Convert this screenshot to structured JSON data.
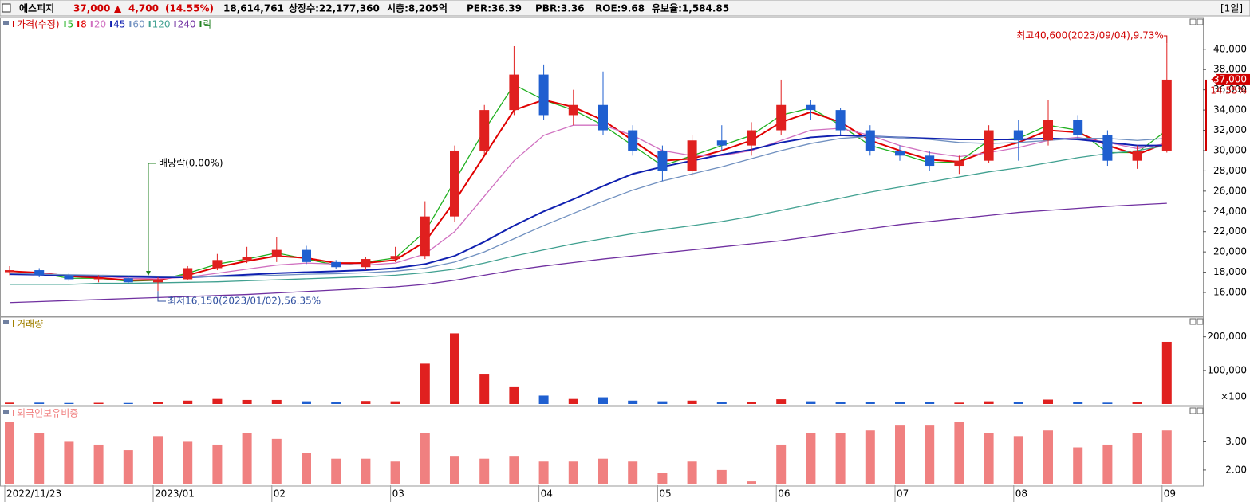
{
  "header": {
    "name": "에스피지",
    "price": "37,000",
    "arrow": "▲",
    "change": "4,700",
    "rate": "(14.55%)",
    "volume": "18,614,761",
    "listed": "상장수:22,177,360",
    "cap": "시총:8,205억",
    "per": "PER:36.39",
    "pbr": "PBR:3.36",
    "roe": "ROE:9.68",
    "reserve": "유보율:1,584.85",
    "period": "[1일]"
  },
  "chart_data": [
    {
      "type": "candlestick",
      "title": "가격(수정)",
      "up_color": "#e0201f",
      "down_color": "#1f5fd0",
      "open": [
        18000,
        18200,
        17700,
        17300,
        17400,
        17000,
        17300,
        18400,
        19200,
        19500,
        20200,
        19000,
        18500,
        19300,
        19600,
        23500,
        30000,
        34000,
        37500,
        33500,
        34500,
        32000,
        30000,
        28000,
        31000,
        30500,
        32000,
        34500,
        34000,
        32000,
        30000,
        29500,
        28500,
        29000,
        32000,
        31000,
        33000,
        31500,
        29000,
        30000
      ],
      "high": [
        18600,
        18400,
        17900,
        17700,
        17600,
        17500,
        18600,
        19800,
        20500,
        21500,
        20600,
        19200,
        19500,
        20500,
        25000,
        30500,
        34500,
        40300,
        38500,
        36000,
        37800,
        32500,
        30500,
        31500,
        32500,
        32800,
        37000,
        35000,
        34200,
        32500,
        30500,
        30000,
        29500,
        32500,
        33000,
        35000,
        33500,
        32000,
        30500,
        40600
      ],
      "low": [
        17700,
        17500,
        17100,
        17000,
        16800,
        16150,
        17200,
        18200,
        18900,
        19000,
        18800,
        18300,
        18200,
        19000,
        19300,
        23000,
        29500,
        33500,
        33000,
        32500,
        31500,
        29500,
        27000,
        27500,
        30000,
        29500,
        31500,
        33000,
        31500,
        29500,
        29000,
        28000,
        27700,
        28800,
        29000,
        30500,
        31000,
        28500,
        28200,
        29800
      ],
      "close": [
        18200,
        17700,
        17300,
        17400,
        17000,
        17300,
        18400,
        19200,
        19500,
        20200,
        19000,
        18500,
        19300,
        19600,
        23500,
        30000,
        34000,
        37500,
        33500,
        34500,
        32000,
        30000,
        28000,
        31000,
        30500,
        32000,
        34500,
        34000,
        32000,
        30000,
        29500,
        28500,
        29000,
        32000,
        31000,
        33000,
        31500,
        29000,
        30000,
        37000
      ],
      "series": [
        {
          "name": "5",
          "color": "#20b020",
          "values": [
            18100,
            17900,
            17400,
            17400,
            17100,
            17200,
            17900,
            18800,
            19300,
            19900,
            19300,
            18700,
            19000,
            19400,
            22000,
            27000,
            32000,
            36500,
            35000,
            34000,
            32500,
            30500,
            28500,
            29500,
            30500,
            31500,
            33500,
            34200,
            32500,
            30500,
            29700,
            28800,
            28900,
            31000,
            31200,
            32500,
            32000,
            29800,
            29800,
            32000
          ]
        },
        {
          "name": "8",
          "color": "#e00000",
          "values": [
            18100,
            17950,
            17600,
            17450,
            17200,
            17250,
            17700,
            18500,
            19100,
            19600,
            19400,
            18900,
            18900,
            19200,
            21000,
            25000,
            29500,
            34000,
            35000,
            34300,
            33000,
            31000,
            29000,
            29200,
            30000,
            31000,
            32800,
            33800,
            32800,
            31000,
            30000,
            29100,
            28900,
            30000,
            30800,
            32000,
            31800,
            30500,
            29600,
            30800
          ]
        },
        {
          "name": "20",
          "color": "#d070c0",
          "values": [
            17900,
            17850,
            17700,
            17600,
            17400,
            17350,
            17500,
            17900,
            18300,
            18700,
            18900,
            18800,
            18700,
            18900,
            19800,
            22000,
            25500,
            29000,
            31500,
            32500,
            32500,
            31500,
            30000,
            29500,
            29500,
            30000,
            31000,
            32000,
            32200,
            31500,
            30500,
            29800,
            29400,
            29800,
            30300,
            31000,
            31300,
            30800,
            30200,
            30700
          ]
        },
        {
          "name": "45",
          "color": "#1020b0",
          "values": [
            17800,
            17750,
            17650,
            17600,
            17550,
            17500,
            17500,
            17600,
            17750,
            17900,
            18000,
            18100,
            18200,
            18400,
            18800,
            19600,
            21000,
            22600,
            24000,
            25200,
            26500,
            27700,
            28400,
            29000,
            29600,
            30100,
            30800,
            31300,
            31500,
            31400,
            31300,
            31200,
            31100,
            31100,
            31100,
            31200,
            31100,
            30800,
            30500,
            30500
          ]
        },
        {
          "name": "60",
          "color": "#7090c0",
          "values": [
            17900,
            17800,
            17750,
            17700,
            17650,
            17600,
            17550,
            17550,
            17600,
            17700,
            17800,
            17850,
            17950,
            18100,
            18400,
            19000,
            20000,
            21300,
            22600,
            23800,
            25000,
            26100,
            27000,
            27700,
            28400,
            29200,
            30000,
            30700,
            31200,
            31400,
            31300,
            31100,
            30800,
            30700,
            30800,
            31000,
            31200,
            31200,
            31000,
            31200
          ]
        },
        {
          "name": "120",
          "color": "#40a090",
          "values": [
            16800,
            16800,
            16800,
            16900,
            16900,
            16950,
            17000,
            17050,
            17150,
            17250,
            17350,
            17450,
            17550,
            17700,
            17950,
            18300,
            18900,
            19600,
            20200,
            20800,
            21300,
            21800,
            22200,
            22600,
            23000,
            23500,
            24100,
            24700,
            25300,
            25900,
            26400,
            26900,
            27400,
            27900,
            28300,
            28800,
            29300,
            29700,
            30000,
            30500
          ]
        },
        {
          "name": "240",
          "color": "#7030a0",
          "values": [
            15000,
            15100,
            15200,
            15300,
            15400,
            15500,
            15600,
            15700,
            15800,
            15950,
            16100,
            16250,
            16400,
            16550,
            16800,
            17200,
            17700,
            18200,
            18600,
            18950,
            19300,
            19600,
            19900,
            20200,
            20500,
            20800,
            21100,
            21500,
            21900,
            22300,
            22700,
            23000,
            23300,
            23600,
            23900,
            24100,
            24300,
            24500,
            24650,
            24800
          ]
        }
      ],
      "legend_extra": {
        "name": "락",
        "color": "#208020"
      },
      "ylim": [
        13800,
        42500
      ],
      "yticks": [
        {
          "value": 16000,
          "label": "16,000"
        },
        {
          "value": 18000,
          "label": "18,000"
        },
        {
          "value": 20000,
          "label": "20,000"
        },
        {
          "value": 22000,
          "label": "22,000"
        },
        {
          "value": 24000,
          "label": "24,000"
        },
        {
          "value": 26000,
          "label": "26,000"
        },
        {
          "value": 28000,
          "label": "28,000"
        },
        {
          "value": 30000,
          "label": "30,000"
        },
        {
          "value": 32000,
          "label": "32,000"
        },
        {
          "value": 34000,
          "label": "34,000"
        },
        {
          "value": 36000,
          "label": "36,000"
        },
        {
          "value": 38000,
          "label": "38,000"
        },
        {
          "value": 40000,
          "label": "40,000"
        }
      ],
      "annotations": {
        "high": "최고40,600(2023/09/04),9.73%",
        "low": "최저16,150(2023/01/02),56.35%",
        "dividend": "배당락(0.00%)",
        "last_price": "37,000",
        "last_rate": "14.55%"
      }
    },
    {
      "type": "bar",
      "title": "거래량",
      "unit": "×100",
      "values": [
        4000,
        4000,
        3000,
        3500,
        3000,
        5000,
        10000,
        15000,
        12000,
        12000,
        8000,
        6000,
        9000,
        8000,
        120000,
        210000,
        90000,
        50000,
        25000,
        15000,
        20000,
        10000,
        8000,
        10000,
        7000,
        6000,
        14000,
        8000,
        6000,
        5000,
        5000,
        5000,
        4000,
        8000,
        7000,
        13000,
        5000,
        4000,
        5000,
        185000
      ],
      "ylim": [
        0,
        230000
      ],
      "yticks": [
        {
          "value": 100000,
          "label": "100,000"
        },
        {
          "value": 200000,
          "label": "200,000"
        }
      ]
    },
    {
      "type": "bar",
      "title": "외국인보유비중",
      "color": "#f08080",
      "values": [
        3.7,
        3.3,
        3.0,
        2.9,
        2.7,
        3.2,
        3.0,
        2.9,
        3.3,
        3.1,
        2.6,
        2.4,
        2.4,
        2.3,
        3.3,
        2.5,
        2.4,
        2.5,
        2.3,
        2.3,
        2.4,
        2.3,
        1.9,
        2.3,
        2.0,
        1.6,
        2.9,
        3.3,
        3.3,
        3.4,
        3.6,
        3.6,
        3.7,
        3.3,
        3.2,
        3.4,
        2.8,
        2.9,
        3.3,
        3.4
      ],
      "ylim": [
        1.49,
        3.97
      ],
      "yticks": [
        {
          "value": 2,
          "label": "2.00"
        },
        {
          "value": 3,
          "label": "3.00"
        }
      ],
      "categories": [
        "2022/11/23",
        null,
        null,
        null,
        null,
        "2023/01",
        null,
        null,
        null,
        "02",
        null,
        null,
        null,
        "03",
        null,
        null,
        null,
        null,
        "04",
        null,
        null,
        null,
        "05",
        null,
        null,
        null,
        "06",
        null,
        null,
        null,
        "07",
        null,
        null,
        null,
        "08",
        null,
        null,
        null,
        null,
        "09"
      ]
    }
  ]
}
